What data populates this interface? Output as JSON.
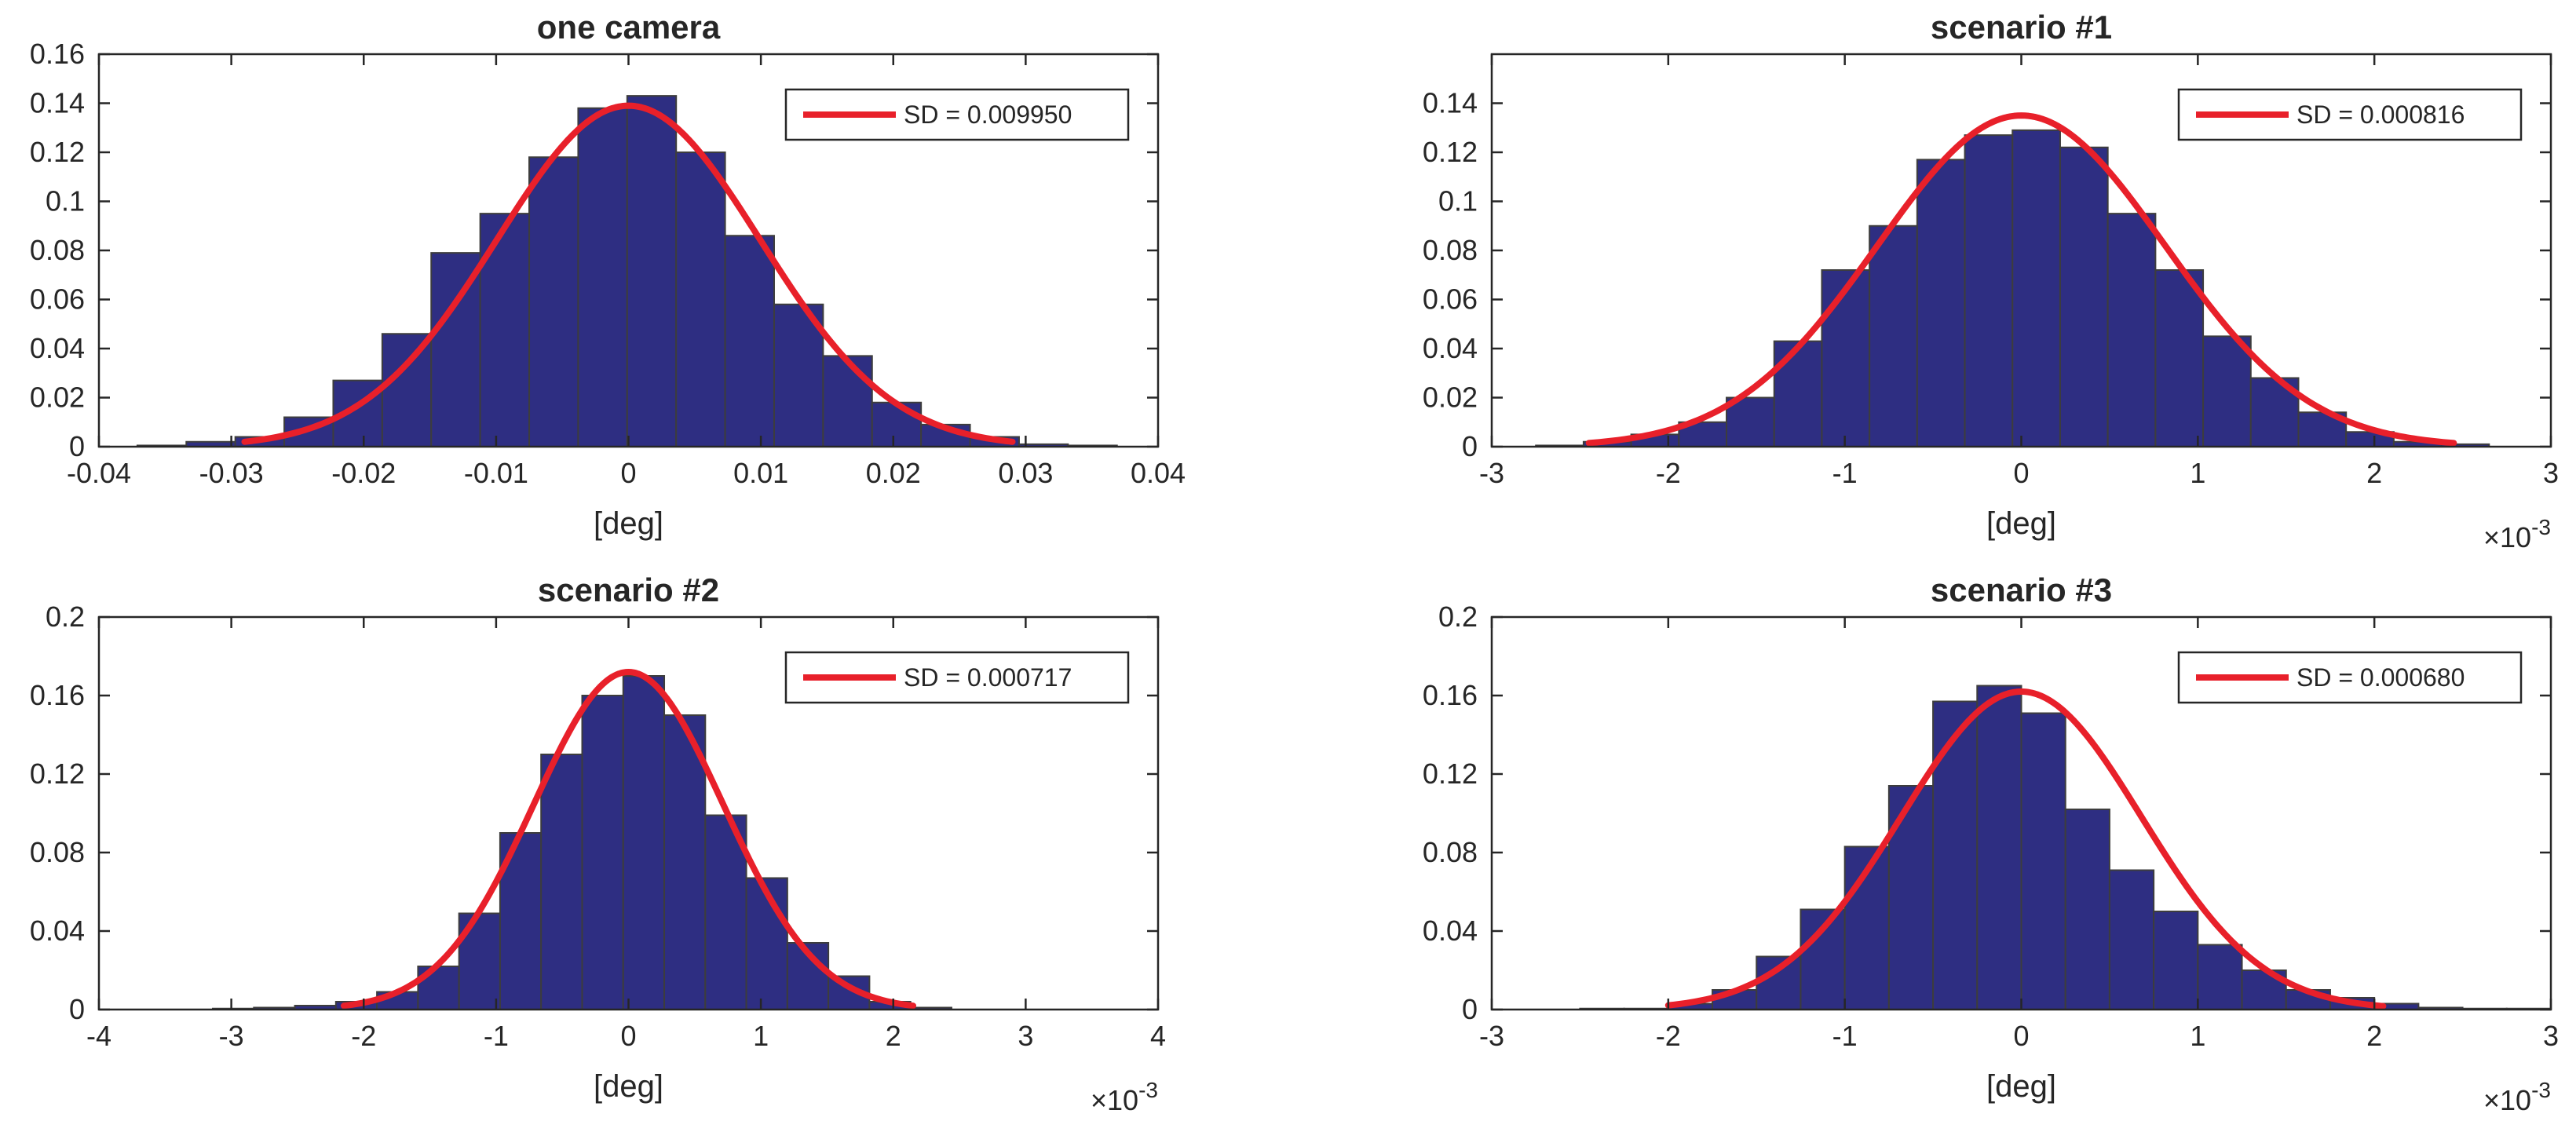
{
  "chart_data": [
    {
      "type": "bar",
      "title": "one camera",
      "xlabel": "[deg]",
      "ylabel": "",
      "xlim": [
        -0.04,
        0.04
      ],
      "ylim": [
        0,
        0.16
      ],
      "xticks": [
        -0.04,
        -0.03,
        -0.02,
        -0.01,
        0,
        0.01,
        0.02,
        0.03,
        0.04
      ],
      "xtick_labels": [
        "-0.04",
        "-0.03",
        "-0.02",
        "-0.01",
        "0",
        "0.01",
        "0.02",
        "0.03",
        "0.04"
      ],
      "yticks": [
        0,
        0.02,
        0.04,
        0.06,
        0.08,
        0.1,
        0.12,
        0.14,
        0.16
      ],
      "ytick_labels": [
        "0",
        "0.02",
        "0.04",
        "0.06",
        "0.08",
        "0.1",
        "0.12",
        "0.14",
        "0.16"
      ],
      "x_exponent": "",
      "bin_edges": [
        -0.0371,
        -0.0334,
        -0.0297,
        -0.026,
        -0.0223,
        -0.0186,
        -0.0149,
        -0.0112,
        -0.0075,
        -0.0038,
        -0.0001,
        0.0036,
        0.0073,
        0.011,
        0.0147,
        0.0184,
        0.0221,
        0.0258,
        0.0295,
        0.0332,
        0.0369
      ],
      "values": [
        0.0005,
        0.002,
        0.004,
        0.012,
        0.027,
        0.046,
        0.079,
        0.095,
        0.118,
        0.138,
        0.143,
        0.12,
        0.086,
        0.058,
        0.037,
        0.018,
        0.009,
        0.004,
        0.001,
        0.0005
      ],
      "legend_label": "SD = 0.009950",
      "legend_position": "top-right",
      "fit": {
        "type": "normal",
        "mu": 0,
        "sd": 0.00995,
        "peak": 0.139,
        "x_range": [
          -0.029,
          0.029
        ]
      },
      "colors": {
        "bar": "#2e2e82",
        "bar_edge": "#3d3d3d",
        "fit": "#e8202a"
      }
    },
    {
      "type": "bar",
      "title": "scenario #1",
      "xlabel": "[deg]",
      "ylabel": "",
      "xlim": [
        -3,
        3
      ],
      "ylim": [
        0,
        0.16
      ],
      "xticks": [
        -3,
        -2,
        -1,
        0,
        1,
        2,
        3
      ],
      "xtick_labels": [
        "-3",
        "-2",
        "-1",
        "0",
        "1",
        "2",
        "3"
      ],
      "yticks": [
        0,
        0.02,
        0.04,
        0.06,
        0.08,
        0.1,
        0.12,
        0.14
      ],
      "ytick_labels": [
        "0",
        "0.02",
        "0.04",
        "0.06",
        "0.08",
        "0.1",
        "0.12",
        "0.14"
      ],
      "x_exponent": "-3",
      "bin_edges": [
        -2.75,
        -2.48,
        -2.21,
        -1.94,
        -1.67,
        -1.4,
        -1.13,
        -0.86,
        -0.59,
        -0.32,
        -0.05,
        0.22,
        0.49,
        0.76,
        1.03,
        1.3,
        1.57,
        1.84,
        2.11,
        2.38,
        2.65
      ],
      "values": [
        0.0005,
        0.002,
        0.005,
        0.01,
        0.02,
        0.043,
        0.072,
        0.09,
        0.117,
        0.127,
        0.129,
        0.122,
        0.095,
        0.072,
        0.045,
        0.028,
        0.014,
        0.006,
        0.002,
        0.001
      ],
      "legend_label": "SD = 0.000816",
      "legend_position": "top-right",
      "fit": {
        "type": "normal",
        "mu": 0,
        "sd": 0.816,
        "peak": 0.135,
        "x_range": [
          -2.45,
          2.45
        ]
      },
      "colors": {
        "bar": "#2e2e82",
        "bar_edge": "#3d3d3d",
        "fit": "#e8202a"
      }
    },
    {
      "type": "bar",
      "title": "scenario #2",
      "xlabel": "[deg]",
      "ylabel": "",
      "xlim": [
        -4,
        4
      ],
      "ylim": [
        0,
        0.2
      ],
      "xticks": [
        -4,
        -3,
        -2,
        -1,
        0,
        1,
        2,
        3,
        4
      ],
      "xtick_labels": [
        "-4",
        "-3",
        "-2",
        "-1",
        "0",
        "1",
        "2",
        "3",
        "4"
      ],
      "yticks": [
        0,
        0.04,
        0.08,
        0.12,
        0.16,
        0.2
      ],
      "ytick_labels": [
        "0",
        "0.04",
        "0.08",
        "0.12",
        "0.16",
        "0.2"
      ],
      "x_exponent": "-3",
      "bin_edges": [
        -3.14,
        -2.83,
        -2.52,
        -2.21,
        -1.9,
        -1.59,
        -1.28,
        -0.97,
        -0.66,
        -0.35,
        -0.04,
        0.27,
        0.58,
        0.89,
        1.2,
        1.51,
        1.82,
        2.13,
        2.44
      ],
      "values": [
        0.0005,
        0.001,
        0.002,
        0.004,
        0.009,
        0.022,
        0.049,
        0.09,
        0.13,
        0.16,
        0.17,
        0.15,
        0.099,
        0.067,
        0.034,
        0.017,
        0.004,
        0.001
      ],
      "legend_label": "SD = 0.000717",
      "legend_position": "top-right",
      "fit": {
        "type": "normal",
        "mu": 0,
        "sd": 0.717,
        "peak": 0.172,
        "x_range": [
          -2.15,
          2.15
        ]
      },
      "colors": {
        "bar": "#2e2e82",
        "bar_edge": "#3d3d3d",
        "fit": "#e8202a"
      }
    },
    {
      "type": "bar",
      "title": "scenario #3",
      "xlabel": "[deg]",
      "ylabel": "",
      "xlim": [
        -3,
        3
      ],
      "ylim": [
        0,
        0.2
      ],
      "xticks": [
        -3,
        -2,
        -1,
        0,
        1,
        2,
        3
      ],
      "xtick_labels": [
        "-3",
        "-2",
        "-1",
        "0",
        "1",
        "2",
        "3"
      ],
      "yticks": [
        0,
        0.04,
        0.08,
        0.12,
        0.16,
        0.2
      ],
      "ytick_labels": [
        "0",
        "0.04",
        "0.08",
        "0.12",
        "0.16",
        "0.2"
      ],
      "x_exponent": "-3",
      "bin_edges": [
        -2.5,
        -2.25,
        -2.0,
        -1.75,
        -1.5,
        -1.25,
        -1.0,
        -0.75,
        -0.5,
        -0.25,
        0.0,
        0.25,
        0.5,
        0.75,
        1.0,
        1.25,
        1.5,
        1.75,
        2.0,
        2.25,
        2.5,
        2.75,
        3.0
      ],
      "values": [
        0.0005,
        0.0005,
        0.003,
        0.01,
        0.027,
        0.051,
        0.083,
        0.114,
        0.157,
        0.165,
        0.151,
        0.102,
        0.071,
        0.05,
        0.033,
        0.02,
        0.01,
        0.006,
        0.003,
        0.001,
        0.0005,
        0.0005
      ],
      "legend_label": "SD = 0.000680",
      "legend_position": "top-right",
      "fit": {
        "type": "normal",
        "mu": 0,
        "sd": 0.68,
        "peak": 0.162,
        "x_range": [
          -2.0,
          2.05
        ]
      },
      "colors": {
        "bar": "#2e2e82",
        "bar_edge": "#3d3d3d",
        "fit": "#e8202a"
      }
    }
  ]
}
